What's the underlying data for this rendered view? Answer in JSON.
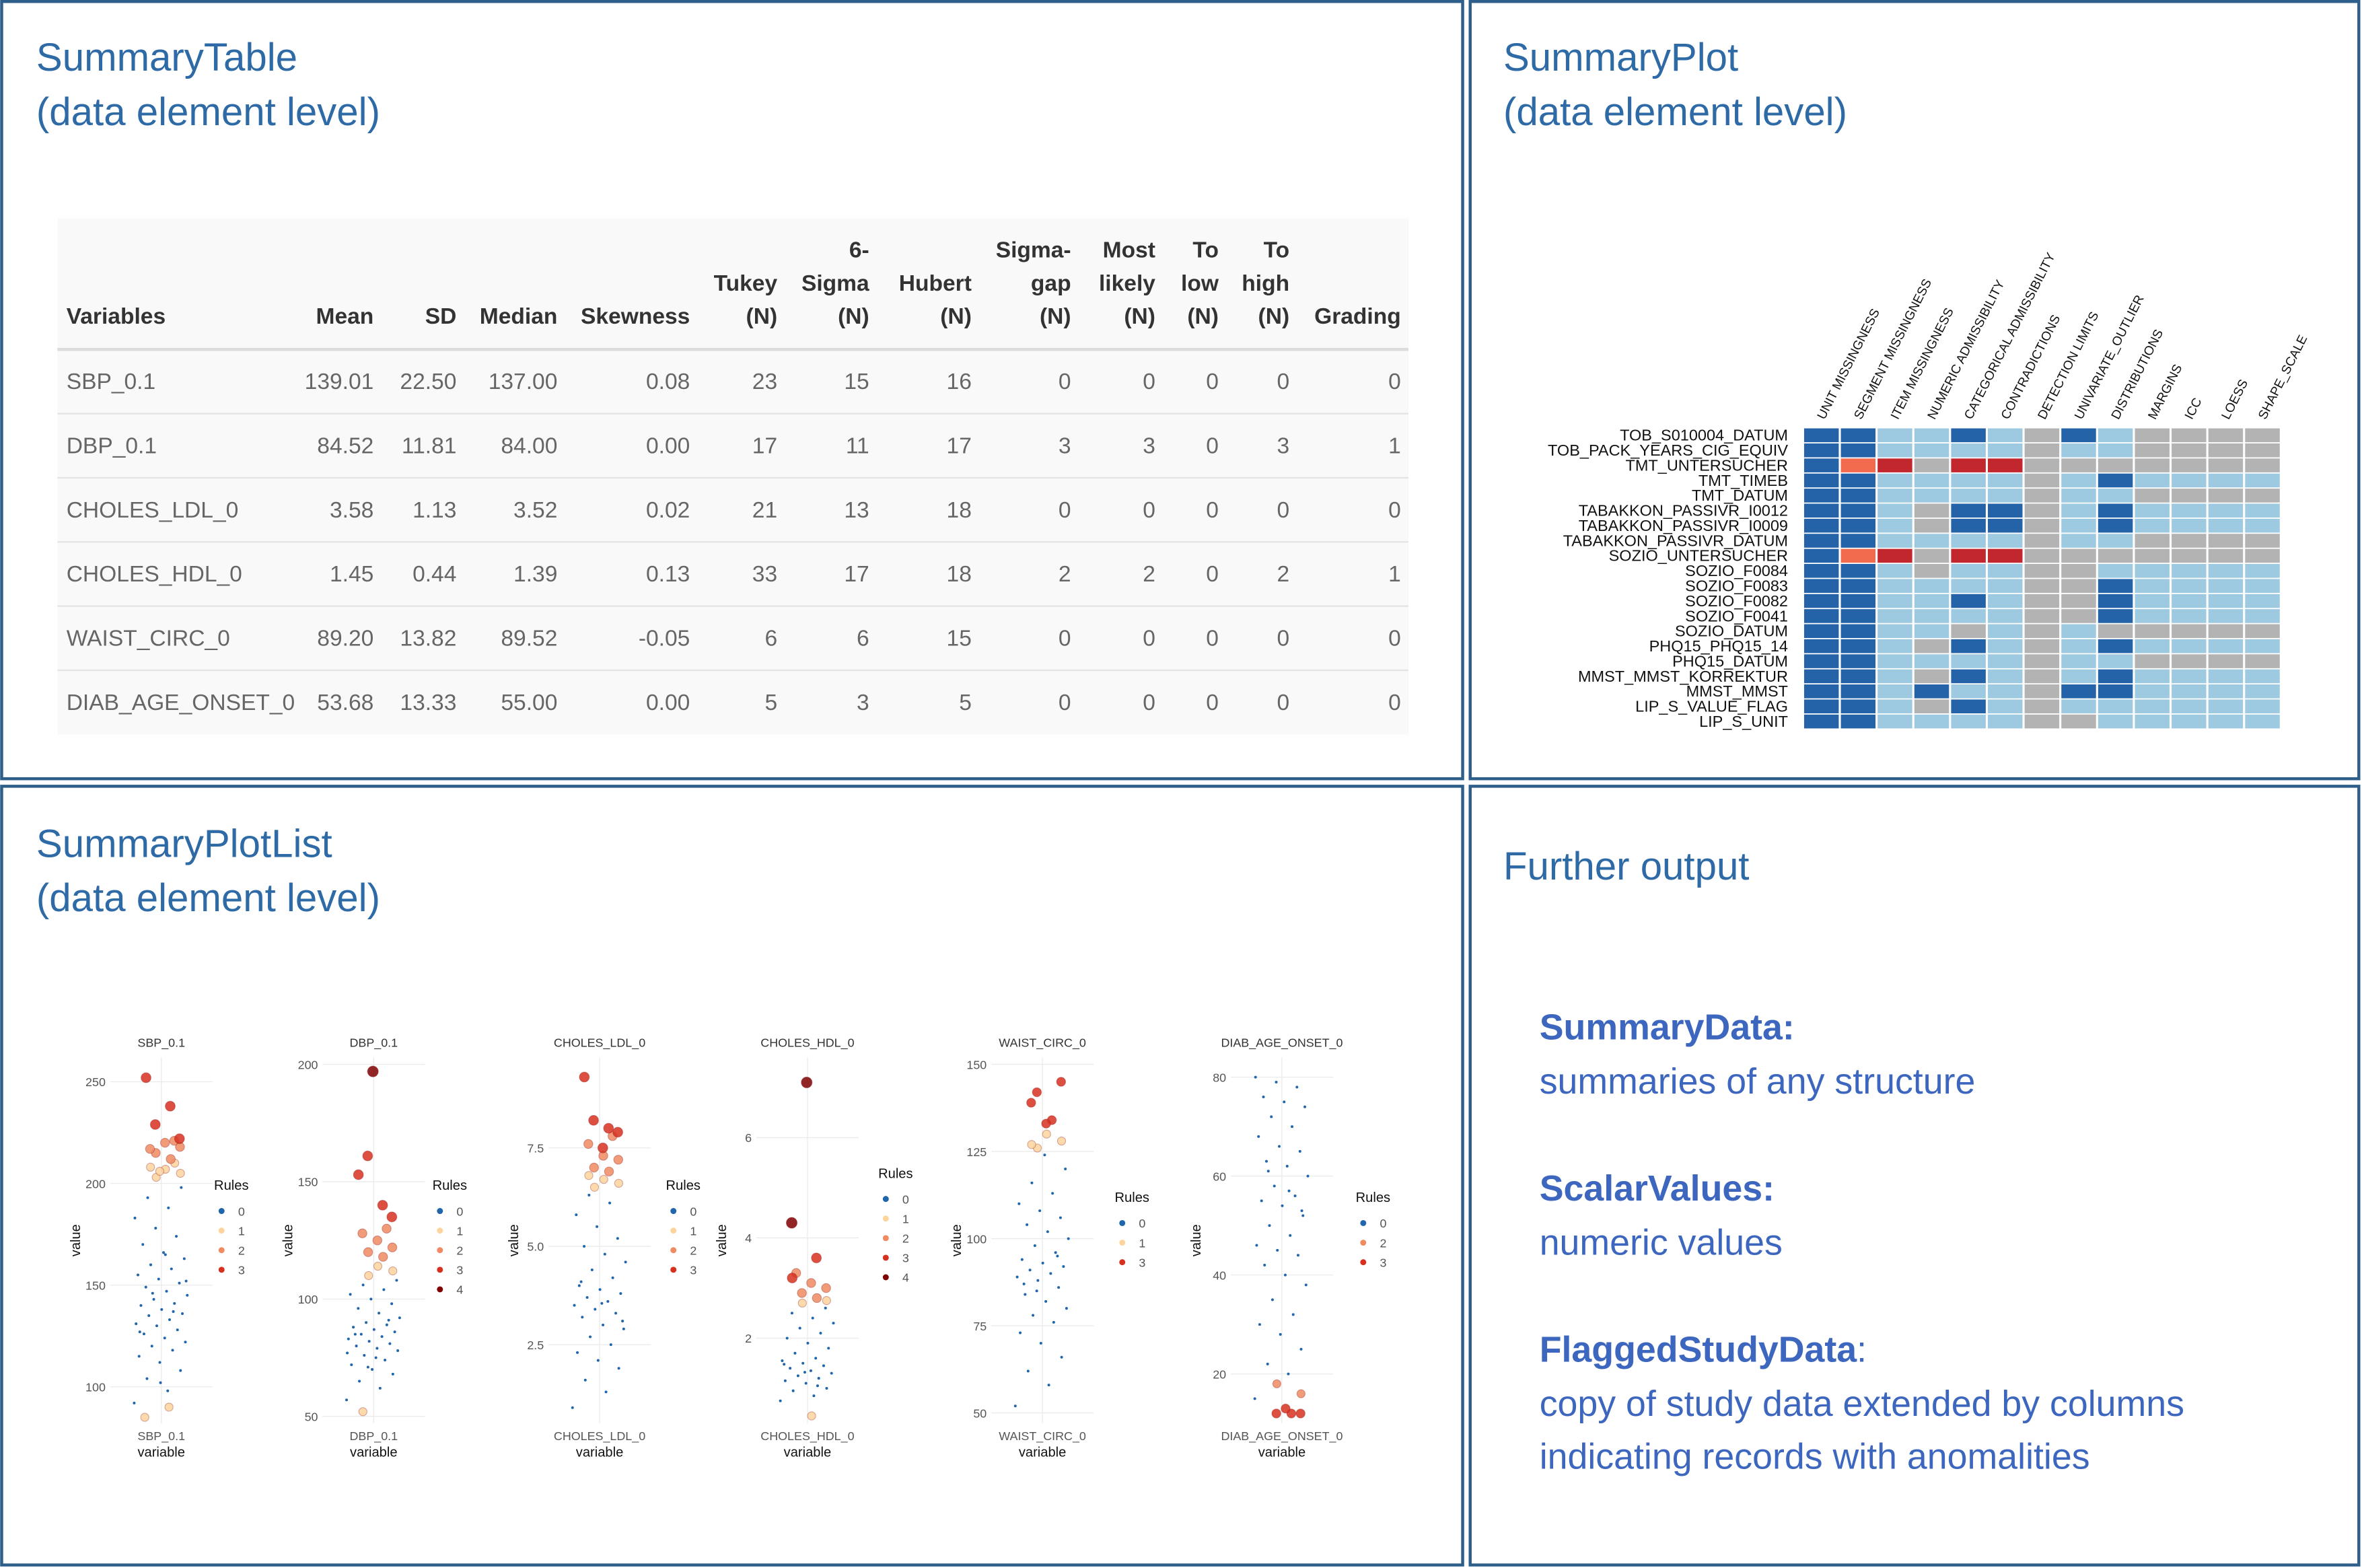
{
  "summary_table": {
    "title": "SummaryTable",
    "subtitle": "(data element level)",
    "columns": [
      [
        "Variables"
      ],
      [
        "Mean"
      ],
      [
        "SD"
      ],
      [
        "Median"
      ],
      [
        "Skewness"
      ],
      [
        "Tukey",
        "(N)"
      ],
      [
        "6-",
        "Sigma",
        "(N)"
      ],
      [
        "Hubert",
        "(N)"
      ],
      [
        "Sigma-",
        "gap",
        "(N)"
      ],
      [
        "Most",
        "likely",
        "(N)"
      ],
      [
        "To",
        "low",
        "(N)"
      ],
      [
        "To",
        "high",
        "(N)"
      ],
      [
        "Grading"
      ]
    ],
    "rows": [
      [
        "SBP_0.1",
        "139.01",
        "22.50",
        "137.00",
        "0.08",
        "23",
        "15",
        "16",
        "0",
        "0",
        "0",
        "0",
        "0"
      ],
      [
        "DBP_0.1",
        "84.52",
        "11.81",
        "84.00",
        "0.00",
        "17",
        "11",
        "17",
        "3",
        "3",
        "0",
        "3",
        "1"
      ],
      [
        "CHOLES_LDL_0",
        "3.58",
        "1.13",
        "3.52",
        "0.02",
        "21",
        "13",
        "18",
        "0",
        "0",
        "0",
        "0",
        "0"
      ],
      [
        "CHOLES_HDL_0",
        "1.45",
        "0.44",
        "1.39",
        "0.13",
        "33",
        "17",
        "18",
        "2",
        "2",
        "0",
        "2",
        "1"
      ],
      [
        "WAIST_CIRC_0",
        "89.20",
        "13.82",
        "89.52",
        "-0.05",
        "6",
        "6",
        "15",
        "0",
        "0",
        "0",
        "0",
        "0"
      ],
      [
        "DIAB_AGE_ONSET_0",
        "53.68",
        "13.33",
        "55.00",
        "0.00",
        "5",
        "3",
        "5",
        "0",
        "0",
        "0",
        "0",
        "0"
      ]
    ]
  },
  "summary_plot": {
    "title": "SummaryPlot",
    "subtitle": "(data element level)",
    "columns": [
      "UNIT MISSINGNESS",
      "SEGMENT MISSINGNESS",
      "ITEM MISSINGNESS",
      "NUMERIC ADMISSIBILITY",
      "CATEGORICAL ADMISSIBILITY",
      "CONTRADICTIONS",
      "DETECTION LIMITS",
      "UNIVARIATE_OUTLIER",
      "DISTRIBUTIONS",
      "MARGINS",
      "ICC",
      "LOESS",
      "SHAPE_SCALE"
    ],
    "rows": [
      "TOB_S010004_DATUM",
      "TOB_PACK_YEARS_CIG_EQUIV",
      "TMT_UNTERSUCHER",
      "TMT_TIMEB",
      "TMT_DATUM",
      "TABAKKON_PASSIVR_I0012",
      "TABAKKON_PASSIVR_I0009",
      "TABAKKON_PASSIVR_DATUM",
      "SOZIO_UNTERSUCHER",
      "SOZIO_F0084",
      "SOZIO_F0083",
      "SOZIO_F0082",
      "SOZIO_F0041",
      "SOZIO_DATUM",
      "PHQ15_PHQ15_14",
      "PHQ15_DATUM",
      "MMST_MMST_KORREKTUR",
      "MMST_MMST",
      "LIP_S_VALUE_FLAG",
      "LIP_S_UNIT"
    ],
    "cell_colors": [
      [
        "#2563a8",
        "#2563a8",
        "#9ecae1",
        "#9ecae1",
        "#2563a8",
        "#9ecae1",
        "#b3b3b3",
        "#2563a8",
        "#9ecae1",
        "#b3b3b3",
        "#b3b3b3",
        "#b3b3b3",
        "#b3b3b3"
      ],
      [
        "#2563a8",
        "#2563a8",
        "#9ecae1",
        "#9ecae1",
        "#9ecae1",
        "#9ecae1",
        "#b3b3b3",
        "#9ecae1",
        "#9ecae1",
        "#b3b3b3",
        "#b3b3b3",
        "#b3b3b3",
        "#b3b3b3"
      ],
      [
        "#2563a8",
        "#f26b4f",
        "#c1272d",
        "#b3b3b3",
        "#c1272d",
        "#c1272d",
        "#b3b3b3",
        "#b3b3b3",
        "#b3b3b3",
        "#b3b3b3",
        "#b3b3b3",
        "#b3b3b3",
        "#b3b3b3"
      ],
      [
        "#2563a8",
        "#2563a8",
        "#9ecae1",
        "#9ecae1",
        "#9ecae1",
        "#9ecae1",
        "#b3b3b3",
        "#9ecae1",
        "#2563a8",
        "#9ecae1",
        "#9ecae1",
        "#9ecae1",
        "#9ecae1"
      ],
      [
        "#2563a8",
        "#2563a8",
        "#9ecae1",
        "#9ecae1",
        "#9ecae1",
        "#9ecae1",
        "#b3b3b3",
        "#9ecae1",
        "#9ecae1",
        "#b3b3b3",
        "#b3b3b3",
        "#b3b3b3",
        "#b3b3b3"
      ],
      [
        "#2563a8",
        "#2563a8",
        "#9ecae1",
        "#b3b3b3",
        "#2563a8",
        "#2563a8",
        "#b3b3b3",
        "#9ecae1",
        "#2563a8",
        "#9ecae1",
        "#9ecae1",
        "#9ecae1",
        "#9ecae1"
      ],
      [
        "#2563a8",
        "#2563a8",
        "#9ecae1",
        "#b3b3b3",
        "#2563a8",
        "#2563a8",
        "#b3b3b3",
        "#9ecae1",
        "#2563a8",
        "#9ecae1",
        "#9ecae1",
        "#9ecae1",
        "#9ecae1"
      ],
      [
        "#2563a8",
        "#2563a8",
        "#9ecae1",
        "#9ecae1",
        "#9ecae1",
        "#9ecae1",
        "#b3b3b3",
        "#9ecae1",
        "#9ecae1",
        "#b3b3b3",
        "#b3b3b3",
        "#b3b3b3",
        "#b3b3b3"
      ],
      [
        "#2563a8",
        "#f26b4f",
        "#c1272d",
        "#b3b3b3",
        "#c1272d",
        "#c1272d",
        "#b3b3b3",
        "#b3b3b3",
        "#b3b3b3",
        "#b3b3b3",
        "#b3b3b3",
        "#b3b3b3",
        "#b3b3b3"
      ],
      [
        "#2563a8",
        "#2563a8",
        "#9ecae1",
        "#b3b3b3",
        "#9ecae1",
        "#9ecae1",
        "#b3b3b3",
        "#b3b3b3",
        "#9ecae1",
        "#9ecae1",
        "#9ecae1",
        "#9ecae1",
        "#9ecae1"
      ],
      [
        "#2563a8",
        "#2563a8",
        "#9ecae1",
        "#9ecae1",
        "#9ecae1",
        "#9ecae1",
        "#b3b3b3",
        "#b3b3b3",
        "#2563a8",
        "#9ecae1",
        "#9ecae1",
        "#9ecae1",
        "#9ecae1"
      ],
      [
        "#2563a8",
        "#2563a8",
        "#9ecae1",
        "#9ecae1",
        "#2563a8",
        "#9ecae1",
        "#b3b3b3",
        "#b3b3b3",
        "#2563a8",
        "#9ecae1",
        "#9ecae1",
        "#9ecae1",
        "#9ecae1"
      ],
      [
        "#2563a8",
        "#2563a8",
        "#9ecae1",
        "#9ecae1",
        "#9ecae1",
        "#9ecae1",
        "#b3b3b3",
        "#b3b3b3",
        "#2563a8",
        "#9ecae1",
        "#9ecae1",
        "#9ecae1",
        "#9ecae1"
      ],
      [
        "#2563a8",
        "#2563a8",
        "#9ecae1",
        "#9ecae1",
        "#b3b3b3",
        "#9ecae1",
        "#b3b3b3",
        "#9ecae1",
        "#b3b3b3",
        "#b3b3b3",
        "#b3b3b3",
        "#b3b3b3",
        "#b3b3b3"
      ],
      [
        "#2563a8",
        "#2563a8",
        "#9ecae1",
        "#b3b3b3",
        "#2563a8",
        "#9ecae1",
        "#b3b3b3",
        "#9ecae1",
        "#2563a8",
        "#9ecae1",
        "#9ecae1",
        "#9ecae1",
        "#9ecae1"
      ],
      [
        "#2563a8",
        "#2563a8",
        "#9ecae1",
        "#9ecae1",
        "#9ecae1",
        "#9ecae1",
        "#b3b3b3",
        "#9ecae1",
        "#9ecae1",
        "#b3b3b3",
        "#b3b3b3",
        "#b3b3b3",
        "#b3b3b3"
      ],
      [
        "#2563a8",
        "#2563a8",
        "#9ecae1",
        "#b3b3b3",
        "#2563a8",
        "#9ecae1",
        "#b3b3b3",
        "#9ecae1",
        "#2563a8",
        "#9ecae1",
        "#9ecae1",
        "#9ecae1",
        "#9ecae1"
      ],
      [
        "#2563a8",
        "#2563a8",
        "#9ecae1",
        "#2563a8",
        "#9ecae1",
        "#9ecae1",
        "#b3b3b3",
        "#2563a8",
        "#2563a8",
        "#9ecae1",
        "#9ecae1",
        "#9ecae1",
        "#9ecae1"
      ],
      [
        "#2563a8",
        "#2563a8",
        "#9ecae1",
        "#b3b3b3",
        "#2563a8",
        "#9ecae1",
        "#b3b3b3",
        "#9ecae1",
        "#9ecae1",
        "#9ecae1",
        "#9ecae1",
        "#9ecae1",
        "#9ecae1"
      ],
      [
        "#2563a8",
        "#2563a8",
        "#9ecae1",
        "#9ecae1",
        "#9ecae1",
        "#9ecae1",
        "#b3b3b3",
        "#b3b3b3",
        "#9ecae1",
        "#9ecae1",
        "#9ecae1",
        "#9ecae1",
        "#9ecae1"
      ]
    ]
  },
  "summary_plot_list": {
    "title": "SummaryPlotList",
    "subtitle": "(data element level)",
    "charts": [
      {
        "type": "scatter",
        "title": "SBP_0.1",
        "categories": [
          "SBP_0.1"
        ],
        "x_label": "variable",
        "y_label": "value",
        "ylim": [
          82,
          262
        ],
        "yticks": [
          100,
          150,
          200,
          250
        ],
        "legend_title": "Rules",
        "series": [
          {
            "name": "0",
            "color": "#2166ac",
            "values": [
              92,
              98,
              104,
              108,
              112,
              115,
              118,
              120,
              122,
              124,
              126,
              128,
              130,
              131,
              133,
              135,
              136,
              138,
              140,
              141,
              143,
              145,
              147,
              149,
              151,
              153,
              155,
              158,
              160,
              163,
              166,
              170,
              174,
              178,
              183,
              188,
              193,
              198,
              102,
              127,
              137,
              146,
              152,
              165
            ]
          },
          {
            "name": "1",
            "color": "#fdd49e",
            "values": [
              203,
              205,
              207,
              208,
              210,
              206,
              85,
              90
            ]
          },
          {
            "name": "2",
            "color": "#ef8a62",
            "values": [
              212,
              215,
              218,
              220,
              217,
              221
            ]
          },
          {
            "name": "3",
            "color": "#d7301f",
            "values": [
              252,
              238,
              229,
              222
            ]
          }
        ]
      },
      {
        "type": "scatter",
        "title": "DBP_0.1",
        "categories": [
          "DBP_0.1"
        ],
        "x_label": "variable",
        "y_label": "value",
        "ylim": [
          47,
          203
        ],
        "yticks": [
          50,
          100,
          150,
          200
        ],
        "legend_title": "Rules",
        "series": [
          {
            "name": "0",
            "color": "#2166ac",
            "values": [
              57,
              62,
              65,
              68,
              70,
              72,
              74,
              76,
              78,
              79,
              80,
              81,
              82,
              83,
              84,
              85,
              86,
              87,
              88,
              89,
              90,
              92,
              94,
              96,
              98,
              100,
              102,
              104,
              106,
              108,
              75,
              85,
              91,
              71,
              77
            ]
          },
          {
            "name": "1",
            "color": "#fdd49e",
            "values": [
              110,
              112,
              114,
              52
            ]
          },
          {
            "name": "2",
            "color": "#ef8a62",
            "values": [
              118,
              120,
              122,
              125,
              128,
              130
            ]
          },
          {
            "name": "3",
            "color": "#d7301f",
            "values": [
              153,
              140,
              161,
              135
            ]
          },
          {
            "name": "4",
            "color": "#7f0000",
            "values": [
              197
            ]
          }
        ]
      },
      {
        "type": "scatter",
        "title": "CHOLES_LDL_0",
        "categories": [
          "CHOLES_LDL_0"
        ],
        "x_label": "variable",
        "y_label": "value",
        "ylim": [
          0.5,
          9.8
        ],
        "yticks": [
          2.5,
          {
            "value": 5,
            "label": "5.0"
          },
          7.5
        ],
        "legend_title": "Rules",
        "series": [
          {
            "name": "0",
            "color": "#2166ac",
            "values": [
              0.9,
              1.3,
              1.6,
              1.9,
              2.1,
              2.3,
              2.5,
              2.7,
              2.9,
              3.0,
              3.2,
              3.3,
              3.4,
              3.5,
              3.6,
              3.7,
              3.8,
              3.9,
              4.0,
              4.2,
              4.4,
              4.6,
              4.8,
              5.0,
              5.2,
              5.5,
              5.8,
              6.1,
              6.3,
              3.1,
              3.55,
              4.1
            ]
          },
          {
            "name": "1",
            "color": "#fdd49e",
            "values": [
              6.5,
              6.6,
              6.7,
              6.8
            ]
          },
          {
            "name": "2",
            "color": "#ef8a62",
            "values": [
              6.9,
              7.0,
              7.2,
              7.3,
              7.6,
              7.8
            ]
          },
          {
            "name": "3",
            "color": "#d7301f",
            "values": [
              9.3,
              8.0,
              8.2,
              7.9,
              7.5
            ]
          }
        ]
      },
      {
        "type": "scatter",
        "title": "CHOLES_HDL_0",
        "categories": [
          "CHOLES_HDL_0"
        ],
        "x_label": "variable",
        "y_label": "value",
        "ylim": [
          0.3,
          7.6
        ],
        "yticks": [
          2,
          4,
          6
        ],
        "legend_title": "Rules",
        "series": [
          {
            "name": "0",
            "color": "#2166ac",
            "values": [
              0.75,
              0.85,
              0.95,
              1.0,
              1.1,
              1.15,
              1.2,
              1.25,
              1.3,
              1.35,
              1.4,
              1.45,
              1.5,
              1.55,
              1.6,
              1.7,
              1.8,
              1.9,
              2.0,
              2.1,
              2.2,
              2.3,
              2.4,
              2.5,
              2.6,
              1.32,
              1.48,
              1.05
            ]
          },
          {
            "name": "1",
            "color": "#fdd49e",
            "values": [
              2.7,
              2.75,
              0.45
            ]
          },
          {
            "name": "2",
            "color": "#ef8a62",
            "values": [
              2.8,
              2.9,
              3.0,
              3.1,
              3.3
            ]
          },
          {
            "name": "3",
            "color": "#d7301f",
            "values": [
              3.2,
              3.6
            ]
          },
          {
            "name": "4",
            "color": "#7f0000",
            "values": [
              7.1,
              4.3
            ]
          }
        ]
      },
      {
        "type": "scatter",
        "title": "WAIST_CIRC_0",
        "categories": [
          "WAIST_CIRC_0"
        ],
        "x_label": "variable",
        "y_label": "value",
        "ylim": [
          47,
          152
        ],
        "yticks": [
          50,
          75,
          100,
          125,
          150
        ],
        "legend_title": "Rules",
        "series": [
          {
            "name": "0",
            "color": "#2166ac",
            "values": [
              52,
              58,
              62,
              66,
              70,
              73,
              76,
              78,
              80,
              82,
              84,
              86,
              88,
              89,
              90,
              91,
              92,
              93,
              94,
              96,
              98,
              100,
              102,
              104,
              106,
              108,
              110,
              113,
              116,
              120,
              124,
              87,
              95,
              85
            ]
          },
          {
            "name": "1",
            "color": "#fdd49e",
            "values": [
              126,
              128,
              130,
              127
            ]
          },
          {
            "name": "3",
            "color": "#d7301f",
            "values": [
              134,
              142,
              145,
              133,
              139
            ]
          }
        ]
      },
      {
        "type": "scatter",
        "title": "DIAB_AGE_ONSET_0",
        "categories": [
          "DIAB_AGE_ONSET_0"
        ],
        "x_label": "variable",
        "y_label": "value",
        "ylim": [
          10,
          84
        ],
        "yticks": [
          20,
          40,
          60,
          80
        ],
        "legend_title": "Rules",
        "series": [
          {
            "name": "0",
            "color": "#2166ac",
            "values": [
              15,
              20,
              22,
              25,
              28,
              30,
              32,
              35,
              38,
              40,
              42,
              44,
              45,
              46,
              48,
              50,
              52,
              54,
              55,
              56,
              58,
              60,
              62,
              63,
              65,
              66,
              68,
              70,
              72,
              74,
              75,
              76,
              78,
              79,
              80,
              57,
              61,
              53
            ]
          },
          {
            "name": "2",
            "color": "#ef8a62",
            "values": [
              18,
              16
            ]
          },
          {
            "name": "3",
            "color": "#d7301f",
            "values": [
              12,
              12,
              12,
              13
            ]
          }
        ]
      }
    ]
  },
  "further_output": {
    "title": "Further output",
    "items": [
      {
        "name": "SummaryData:",
        "description": [
          "summaries of any structure"
        ]
      },
      {
        "name": "ScalarValues:",
        "description": [
          "numeric values"
        ]
      },
      {
        "name": "FlaggedStudyData",
        "suffix": ":",
        "description": [
          "copy of study data extended by columns",
          "indicating records with anomalities"
        ]
      }
    ]
  }
}
